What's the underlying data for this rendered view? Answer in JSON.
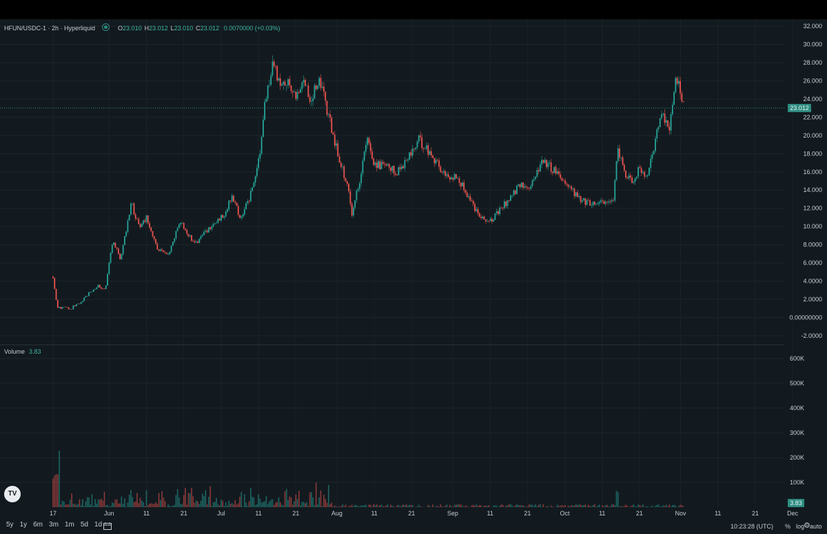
{
  "header": {
    "symbol": "HFUN/USDC-1 · 2h · Hyperliquid",
    "open_label": "O",
    "open": "23.010",
    "high_label": "H",
    "high": "23.012",
    "low_label": "L",
    "low": "23.010",
    "close_label": "C",
    "close": "23.012",
    "change": "0.0070000 (+0.03%)"
  },
  "volume_legend": {
    "label": "Volume",
    "value": "3.83"
  },
  "timeframes": [
    "5y",
    "1y",
    "6m",
    "3m",
    "1m",
    "5d",
    "1d"
  ],
  "clock": "10:23:28 (UTC)",
  "scale_options": {
    "percent": "%",
    "log": "log",
    "auto": "auto"
  },
  "colors": {
    "up": "#26a69a",
    "down": "#ef5350",
    "background": "#121a1f",
    "price_tag": "#2e8c80"
  },
  "chart_data": {
    "type": "candlestick",
    "price_axis": {
      "ylim": [
        -2,
        32
      ],
      "ticks": [
        "32.000",
        "30.000",
        "28.000",
        "26.000",
        "24.000",
        "22.000",
        "20.000",
        "18.000",
        "16.000",
        "14.000",
        "12.000",
        "10.000",
        "8.0000",
        "6.0000",
        "4.0000",
        "2.0000",
        "0.00000000",
        "-2.0000"
      ],
      "last_price": "23.012"
    },
    "volume_axis": {
      "ylim": [
        0,
        600000
      ],
      "ticks": [
        "600K",
        "500K",
        "400K",
        "300K",
        "200K",
        "100K"
      ],
      "last_volume": "3.83"
    },
    "x_ticks": [
      "17",
      "Jun",
      "11",
      "21",
      "Jul",
      "11",
      "21",
      "Aug",
      "11",
      "21",
      "Sep",
      "11",
      "21",
      "Oct",
      "11",
      "21",
      "Nov",
      "11",
      "21",
      "Dec"
    ],
    "price_path": [
      [
        "2024-05-17",
        4.5
      ],
      [
        "2024-05-18",
        1.2
      ],
      [
        "2024-05-22",
        1.0
      ],
      [
        "2024-05-25",
        2.0
      ],
      [
        "2024-05-29",
        3.5
      ],
      [
        "2024-05-31",
        3.2
      ],
      [
        "2024-06-02",
        8.5
      ],
      [
        "2024-06-04",
        6.5
      ],
      [
        "2024-06-07",
        12.5
      ],
      [
        "2024-06-09",
        10.0
      ],
      [
        "2024-06-11",
        11.0
      ],
      [
        "2024-06-14",
        7.5
      ],
      [
        "2024-06-17",
        7.0
      ],
      [
        "2024-06-20",
        10.5
      ],
      [
        "2024-06-24",
        8.0
      ],
      [
        "2024-06-27",
        9.5
      ],
      [
        "2024-06-30",
        10.5
      ],
      [
        "2024-07-02",
        11.5
      ],
      [
        "2024-07-04",
        13.5
      ],
      [
        "2024-07-06",
        11.0
      ],
      [
        "2024-07-08",
        12.5
      ],
      [
        "2024-07-10",
        15.0
      ],
      [
        "2024-07-12",
        20.0
      ],
      [
        "2024-07-13",
        24.5
      ],
      [
        "2024-07-15",
        28.0
      ],
      [
        "2024-07-17",
        25.0
      ],
      [
        "2024-07-19",
        26.0
      ],
      [
        "2024-07-21",
        24.0
      ],
      [
        "2024-07-23",
        26.5
      ],
      [
        "2024-07-25",
        23.5
      ],
      [
        "2024-07-27",
        26.0
      ],
      [
        "2024-07-29",
        23.5
      ],
      [
        "2024-07-31",
        20.0
      ],
      [
        "2024-08-02",
        17.0
      ],
      [
        "2024-08-04",
        14.0
      ],
      [
        "2024-08-05",
        11.5
      ],
      [
        "2024-08-07",
        15.0
      ],
      [
        "2024-08-09",
        19.5
      ],
      [
        "2024-08-11",
        17.0
      ],
      [
        "2024-08-14",
        16.5
      ],
      [
        "2024-08-17",
        16.0
      ],
      [
        "2024-08-20",
        17.5
      ],
      [
        "2024-08-23",
        19.5
      ],
      [
        "2024-08-25",
        18.5
      ],
      [
        "2024-08-27",
        17.5
      ],
      [
        "2024-08-30",
        15.5
      ],
      [
        "2024-09-02",
        15.5
      ],
      [
        "2024-09-05",
        13.5
      ],
      [
        "2024-09-07",
        12.0
      ],
      [
        "2024-09-09",
        11.0
      ],
      [
        "2024-09-11",
        10.5
      ],
      [
        "2024-09-13",
        11.5
      ],
      [
        "2024-09-16",
        13.0
      ],
      [
        "2024-09-19",
        14.5
      ],
      [
        "2024-09-22",
        14.5
      ],
      [
        "2024-09-25",
        17.5
      ],
      [
        "2024-09-27",
        16.5
      ],
      [
        "2024-09-29",
        16.0
      ],
      [
        "2024-10-02",
        14.5
      ],
      [
        "2024-10-05",
        13.0
      ],
      [
        "2024-10-08",
        12.5
      ],
      [
        "2024-10-11",
        12.8
      ],
      [
        "2024-10-14",
        12.5
      ],
      [
        "2024-10-15",
        18.5
      ],
      [
        "2024-10-17",
        16.0
      ],
      [
        "2024-10-19",
        15.0
      ],
      [
        "2024-10-21",
        16.5
      ],
      [
        "2024-10-23",
        15.0
      ],
      [
        "2024-10-25",
        19.0
      ],
      [
        "2024-10-27",
        22.5
      ],
      [
        "2024-10-29",
        21.0
      ],
      [
        "2024-10-31",
        26.5
      ],
      [
        "2024-11-01",
        24.5
      ],
      [
        "2024-11-02",
        23.0
      ]
    ]
  }
}
